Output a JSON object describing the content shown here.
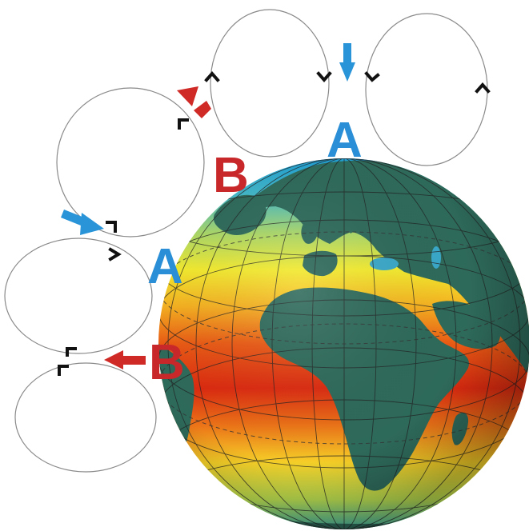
{
  "diagram": {
    "labels": {
      "high": "A",
      "low": "B"
    },
    "colors": {
      "high": "#2a8fd6",
      "low": "#c8282a",
      "arrow_blue": "#2a94d8",
      "arrow_red": "#d02a26",
      "cell_outline": "#8a8a8a",
      "land": "#2e6a5a",
      "ocean_cold": "#22a8d8",
      "ocean_temperate": "#f2e530",
      "ocean_warm": "#e02a10",
      "grid": "#333333"
    },
    "icons": [
      "earth-globe",
      "circulation-cell",
      "wind-arrow",
      "direction-chevron"
    ]
  }
}
